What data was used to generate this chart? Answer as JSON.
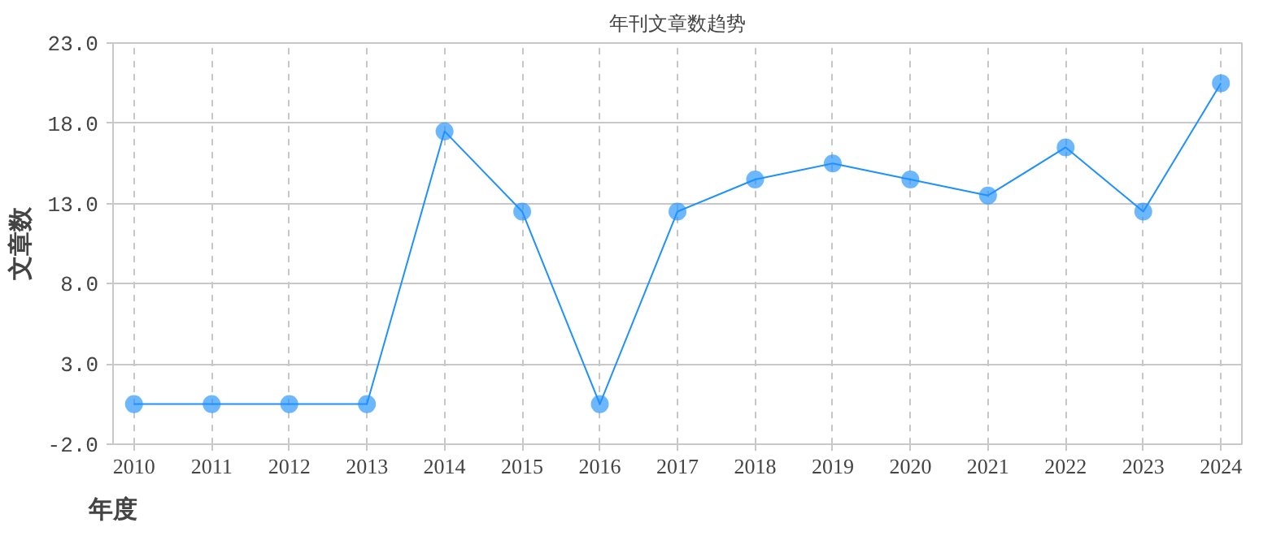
{
  "chart_data": {
    "type": "line",
    "title": "年刊文章数趋势",
    "xlabel": "年度",
    "ylabel": "文章数",
    "categories": [
      "2010",
      "2011",
      "2012",
      "2013",
      "2014",
      "2015",
      "2016",
      "2017",
      "2018",
      "2019",
      "2020",
      "2021",
      "2022",
      "2023",
      "2024"
    ],
    "series": [
      {
        "color": "#1e90ff",
        "values": [
          0.5,
          0.5,
          0.5,
          0.5,
          17.5,
          12.5,
          0.5,
          12.5,
          14.5,
          15.5,
          14.5,
          13.5,
          16.5,
          12.5,
          20.5
        ]
      }
    ],
    "ylim": [
      -2,
      23
    ],
    "yticks": [
      {
        "value": -2,
        "label": "-2.0"
      },
      {
        "value": 3,
        "label": "3.0"
      },
      {
        "value": 8,
        "label": "8.0"
      },
      {
        "value": 13,
        "label": "13.0"
      },
      {
        "value": 18,
        "label": "18.0"
      },
      {
        "value": 23,
        "label": "23.0"
      }
    ],
    "grid": true,
    "marker": "circle",
    "line_style": "solid"
  }
}
